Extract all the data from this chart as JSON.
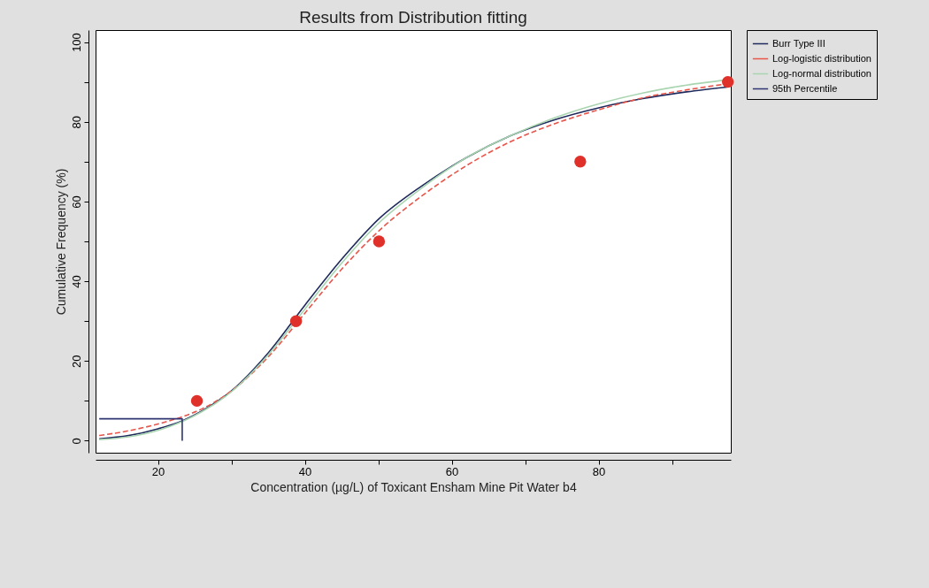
{
  "chart_data": {
    "type": "line",
    "title": "Results from Distribution fitting",
    "xlabel": "Concentration (µg/L) of Toxicant Ensham Mine Pit Water b4",
    "ylabel": "Cumulative Frequency (%)",
    "xlim": [
      11.5,
      98
    ],
    "ylim": [
      -3,
      103
    ],
    "xticks": [
      20,
      {
        "value": 30,
        "label": null
      },
      40,
      {
        "value": 50,
        "label": null
      },
      60,
      {
        "value": 70,
        "label": null
      },
      80,
      {
        "value": 90,
        "label": null
      }
    ],
    "yticks": [
      0,
      {
        "value": 10,
        "label": null
      },
      20,
      {
        "value": 30,
        "label": null
      },
      40,
      {
        "value": 50,
        "label": null
      },
      60,
      {
        "value": 70,
        "label": null
      },
      80,
      {
        "value": 90,
        "label": null
      },
      100
    ],
    "legend": "top right",
    "grid": false,
    "series": [
      {
        "name": "Burr Type III",
        "color": "#1f2a5c",
        "line_style": "solid",
        "x": [
          12,
          16,
          20,
          23.3,
          26,
          30,
          35,
          40,
          45,
          50,
          56,
          62,
          68,
          74,
          80,
          86,
          92,
          97.5
        ],
        "values": [
          0.5,
          1.3,
          3,
          5,
          7.5,
          12.5,
          22,
          34,
          45.5,
          55.5,
          64,
          71,
          76.5,
          80.5,
          83.5,
          85.8,
          87.5,
          88.7
        ]
      },
      {
        "name": "Log-logistic distribution",
        "color": "#e8554a",
        "line_style": "dashed",
        "x": [
          12,
          16,
          20,
          23.3,
          26,
          30,
          35,
          40,
          45,
          50,
          56,
          62,
          68,
          74,
          80,
          86,
          92,
          97.5
        ],
        "values": [
          1.3,
          2.5,
          4.2,
          6,
          8,
          12.5,
          21,
          32,
          43,
          52.5,
          61.5,
          69,
          75,
          79.5,
          83,
          86,
          88,
          89.5
        ]
      },
      {
        "name": "Log-normal distribution",
        "color": "#a8d5b0",
        "line_style": "solid",
        "x": [
          12,
          16,
          20,
          23.3,
          26,
          30,
          35,
          40,
          45,
          50,
          56,
          62,
          68,
          74,
          80,
          86,
          92,
          97.5
        ],
        "values": [
          0.3,
          1,
          2.6,
          4.8,
          7.3,
          12.3,
          21.5,
          33,
          44.5,
          54.5,
          63.5,
          71,
          76.5,
          81,
          84.5,
          87.2,
          89.2,
          90.5
        ]
      },
      {
        "name": "95th Percentile",
        "color": "#2e3570",
        "line_style": "solid",
        "x": [
          12,
          23.3,
          23.3
        ],
        "values": [
          5.5,
          5.5,
          0
        ]
      },
      {
        "type": "scatter",
        "color": "#e0302a",
        "marker": "circle",
        "x": [
          25.3,
          38.8,
          50.1,
          77.5,
          97.6
        ],
        "values": [
          10,
          30,
          50,
          70,
          90
        ]
      }
    ]
  }
}
